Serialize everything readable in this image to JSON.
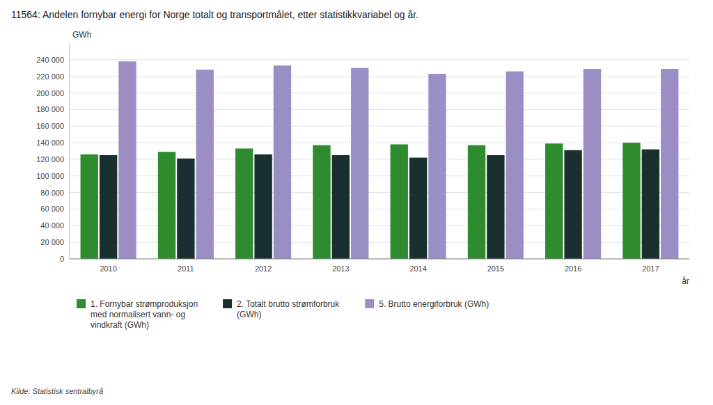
{
  "chart_data": {
    "type": "bar",
    "title": "11564: Andelen fornybar energi for Norge totalt og transportmålet, etter statistikkvariabel og år.",
    "x_label": "år",
    "y_label": "GWh",
    "categories": [
      "2010",
      "2011",
      "2012",
      "2013",
      "2014",
      "2015",
      "2016",
      "2017"
    ],
    "series": [
      {
        "name": "1. Fornybar strømproduksjon\nmed normalisert vann- og\nvindkraft (GWh)",
        "color": "#2e8b2e",
        "values": [
          126000,
          129000,
          133000,
          137000,
          138000,
          137000,
          139000,
          140000
        ]
      },
      {
        "name": "2. Totalt brutto strømforbruk\n(GWh)",
        "color": "#1a3030",
        "values": [
          125000,
          121000,
          126000,
          125000,
          122000,
          125000,
          131000,
          132000
        ]
      },
      {
        "name": "5. Brutto energiforbruk (GWh)",
        "color": "#9b8ec4",
        "values": [
          238000,
          228000,
          233000,
          230000,
          223000,
          226000,
          229000,
          229000
        ]
      }
    ],
    "ylim": [
      0,
      260000
    ],
    "yticks": [
      0,
      {
        "value": 20000,
        "label": "20 000"
      },
      {
        "value": 40000,
        "label": "40 000"
      },
      {
        "value": 60000,
        "label": "60 000"
      },
      {
        "value": 80000,
        "label": "80 000"
      },
      {
        "value": 100000,
        "label": "100 000"
      },
      {
        "value": 120000,
        "label": "120 000"
      },
      {
        "value": 140000,
        "label": "140 000"
      },
      {
        "value": 160000,
        "label": "160 000"
      },
      {
        "value": 180000,
        "label": "180 000"
      },
      {
        "value": 200000,
        "label": "200 000"
      },
      {
        "value": 220000,
        "label": "220 000"
      },
      {
        "value": 240000,
        "label": "240 000"
      }
    ],
    "grid": true,
    "legend": "bottom",
    "annotations": [
      "Kilde:  Statistisk sentralbyrå"
    ]
  }
}
